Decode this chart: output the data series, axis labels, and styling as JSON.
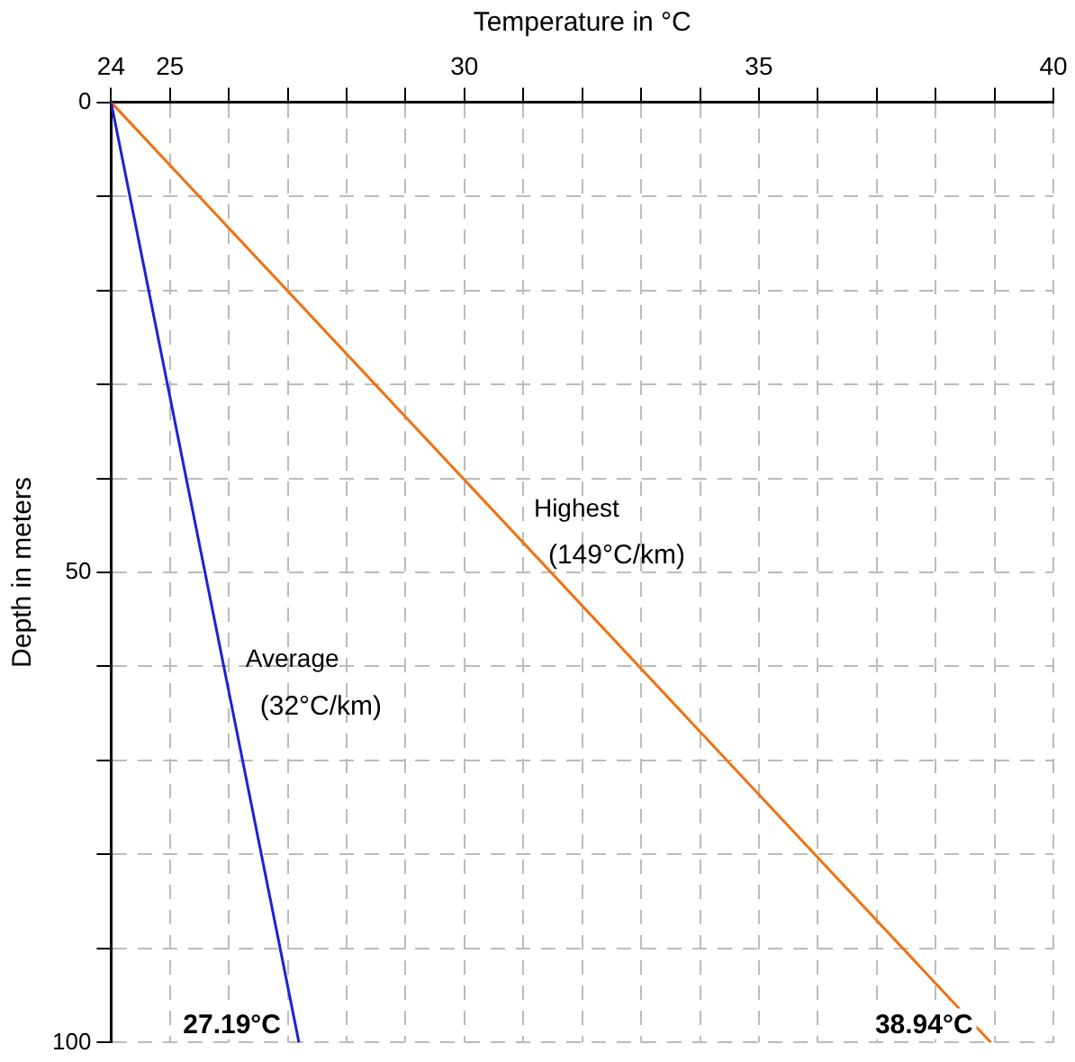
{
  "chart_data": {
    "type": "line",
    "xlabel": "Temperature in °C",
    "ylabel": "Depth in meters",
    "xlim": [
      24,
      40
    ],
    "xticks": [
      {
        "value": 24,
        "label": "24"
      },
      25,
      {
        "value": 26,
        "label": null
      },
      {
        "value": 27,
        "label": null
      },
      {
        "value": 28,
        "label": null
      },
      {
        "value": 29,
        "label": null
      },
      30,
      {
        "value": 31,
        "label": null
      },
      {
        "value": 32,
        "label": null
      },
      {
        "value": 33,
        "label": null
      },
      {
        "value": 34,
        "label": null
      },
      35,
      {
        "value": 36,
        "label": null
      },
      {
        "value": 37,
        "label": null
      },
      {
        "value": 38,
        "label": null
      },
      {
        "value": 39,
        "label": null
      },
      40
    ],
    "ylim": [
      100,
      0
    ],
    "yticks": [
      0,
      {
        "value": 10,
        "label": null
      },
      {
        "value": 20,
        "label": null
      },
      {
        "value": 30,
        "label": null
      },
      {
        "value": 40,
        "label": null
      },
      50,
      {
        "value": 60,
        "label": null
      },
      {
        "value": 70,
        "label": null
      },
      {
        "value": 80,
        "label": null
      },
      {
        "value": 90,
        "label": null
      },
      100
    ],
    "grid": true,
    "legend": false,
    "marker": "none",
    "line_style": "solid",
    "series": [
      {
        "name": "Average",
        "color": "#1f1fd6",
        "x": [
          24,
          27.19
        ],
        "values": [
          0,
          100
        ]
      },
      {
        "name": "Highest",
        "color": "#f07010",
        "x": [
          24,
          38.94
        ],
        "values": [
          0,
          100
        ]
      }
    ],
    "annotations": [
      "(32°C/km)",
      "(149°C/km)",
      {
        "text": "27.19°C",
        "x": 27.19,
        "y": 100
      },
      {
        "text": "38.94°C",
        "x": 38.94,
        "y": 100
      }
    ]
  }
}
